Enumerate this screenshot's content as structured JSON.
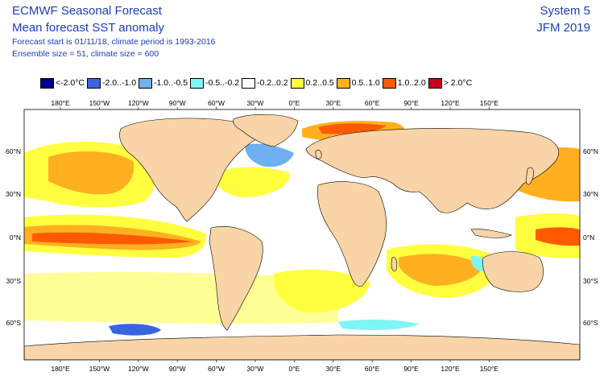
{
  "header": {
    "title_line1": "ECMWF Seasonal Forecast",
    "title_line2": "Mean forecast SST anomaly",
    "subtitle_line1": "Forecast start is 01/11/18, climate period is 1993-2016",
    "subtitle_line2": "Ensemble size = 51, climate size = 600",
    "system": "System 5",
    "period": "JFM 2019"
  },
  "legend": [
    {
      "label": "<-2.0°C",
      "color": "#00008b"
    },
    {
      "label": "-2.0..-1.0",
      "color": "#3a64e0"
    },
    {
      "label": "-1.0..-0.5",
      "color": "#6eb0f0"
    },
    {
      "label": "-0.5..-0.2",
      "color": "#7ff5f5"
    },
    {
      "label": "-0.2..0.2",
      "color": "#ffffff"
    },
    {
      "label": "0.2..0.5",
      "color": "#ffff40"
    },
    {
      "label": "0.5..1.0",
      "color": "#ffb020"
    },
    {
      "label": "1.0..2.0",
      "color": "#ff5a00"
    },
    {
      "label": "> 2.0°C",
      "color": "#c8001e"
    }
  ],
  "axes": {
    "lon_labels": [
      "180°E",
      "150°W",
      "120°W",
      "90°W",
      "60°W",
      "30°W",
      "0°E",
      "30°E",
      "60°E",
      "90°E",
      "120°E",
      "150°E"
    ],
    "lat_labels": [
      "60°N",
      "30°N",
      "0°N",
      "30°S",
      "60°S"
    ]
  },
  "colors": {
    "land": "#f8d4a6",
    "ocean": "#ffffff",
    "text": "#1c3fb5"
  }
}
